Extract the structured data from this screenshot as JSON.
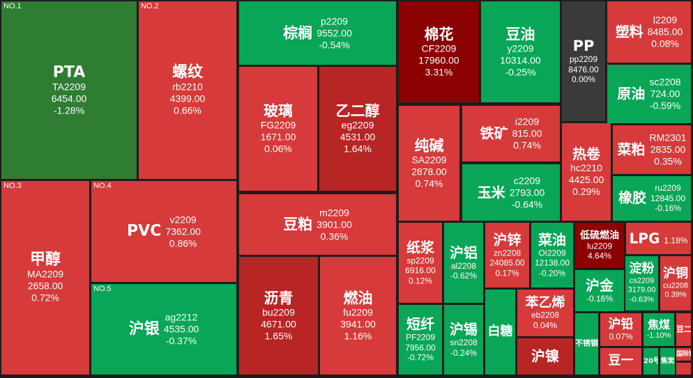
{
  "colors": {
    "bg": "#1d1d1d",
    "red": "#d63a3a",
    "red_deep": "#b82525",
    "red_dark": "#8b0000",
    "green": "#08a656",
    "green_dark": "#2e7d32",
    "neutral": "#3a3a3a"
  },
  "tiles": [
    {
      "rank": "NO.1",
      "name": "PTA",
      "code": "TA2209",
      "price": "6454.00",
      "change": "-1.28%",
      "fill": "#2e7d32",
      "layout": "stack",
      "fs": 22
    },
    {
      "rank": "NO.2",
      "name": "螺纹",
      "code": "rb2210",
      "price": "4399.00",
      "change": "0.66%",
      "fill": "#d63a3a",
      "layout": "stack",
      "fs": 22
    },
    {
      "name": "棕榈",
      "code": "p2209",
      "price": "9552.00",
      "change": "-0.54%",
      "fill": "#08a656",
      "layout": "side",
      "fs": 21
    },
    {
      "name": "棉花",
      "code": "CF2209",
      "price": "17960.00",
      "change": "3.31%",
      "fill": "#8b0000",
      "layout": "stack",
      "fs": 21
    },
    {
      "name": "豆油",
      "code": "y2209",
      "price": "10314.00",
      "change": "-0.25%",
      "fill": "#08a656",
      "layout": "stack",
      "fs": 21
    },
    {
      "name": "PP",
      "code": "pp2209",
      "price": "8476.00",
      "change": "0.00%",
      "fill": "#3a3a3a",
      "layout": "stack",
      "fs": 21
    },
    {
      "name": "塑料",
      "code": "l2209",
      "price": "8485.00",
      "change": "0.08%",
      "fill": "#d63a3a",
      "layout": "side",
      "fs": 20
    },
    {
      "name": "玻璃",
      "code": "FG2209",
      "price": "1671.00",
      "change": "0.06%",
      "fill": "#d63a3a",
      "layout": "stack",
      "fs": 21
    },
    {
      "name": "乙二醇",
      "code": "eg2209",
      "price": "4531.00",
      "change": "1.64%",
      "fill": "#b82525",
      "layout": "stack",
      "fs": 21
    },
    {
      "name": "原油",
      "code": "sc2208",
      "price": "724.00",
      "change": "-0.59%",
      "fill": "#08a656",
      "layout": "side",
      "fs": 20
    },
    {
      "name": "纯碱",
      "code": "SA2209",
      "price": "2878.00",
      "change": "0.74%",
      "fill": "#d63a3a",
      "layout": "stack",
      "fs": 21
    },
    {
      "name": "铁矿",
      "code": "i2209",
      "price": "815.00",
      "change": "0.74%",
      "fill": "#d63a3a",
      "layout": "side",
      "fs": 20
    },
    {
      "name": "热卷",
      "code": "hc2210",
      "price": "4425.00",
      "change": "0.29%",
      "fill": "#d63a3a",
      "layout": "stack",
      "fs": 20
    },
    {
      "name": "菜粕",
      "code": "RM2301",
      "price": "2835.00",
      "change": "0.35%",
      "fill": "#d63a3a",
      "layout": "side",
      "fs": 20
    },
    {
      "rank": "NO.3",
      "name": "甲醇",
      "code": "MA2209",
      "price": "2658.00",
      "change": "0.72%",
      "fill": "#d63a3a",
      "layout": "stack",
      "fs": 22
    },
    {
      "rank": "NO.4",
      "name": "PVC",
      "code": "v2209",
      "price": "7362.00",
      "change": "0.86%",
      "fill": "#d63a3a",
      "layout": "side",
      "fs": 22
    },
    {
      "name": "玉米",
      "code": "c2209",
      "price": "2793.00",
      "change": "-0.64%",
      "fill": "#08a656",
      "layout": "side",
      "fs": 20
    },
    {
      "name": "橡胶",
      "code": "ru2209",
      "price": "12845.00",
      "change": "-0.16%",
      "fill": "#08a656",
      "layout": "side",
      "fs": 20
    },
    {
      "name": "豆粕",
      "code": "m2209",
      "price": "3901.00",
      "change": "0.36%",
      "fill": "#d63a3a",
      "layout": "side",
      "fs": 21
    },
    {
      "name": "纸浆",
      "code": "sp2209",
      "price": "6916.00",
      "change": "0.12%",
      "fill": "#d63a3a",
      "layout": "stack",
      "fs": 20
    },
    {
      "name": "沪铝",
      "code": "al2208",
      "price": "",
      "change": "-0.62%",
      "fill": "#08a656",
      "layout": "stack",
      "fs": 20
    },
    {
      "name": "沪锌",
      "code": "zn2208",
      "price": "24085.00",
      "change": "0.17%",
      "fill": "#d63a3a",
      "layout": "stack",
      "fs": 20
    },
    {
      "name": "菜油",
      "code": "OI2209",
      "price": "12138.00",
      "change": "-0.20%",
      "fill": "#08a656",
      "layout": "stack",
      "fs": 20
    },
    {
      "name": "低硫燃油",
      "code": "lu2209",
      "price": "",
      "change": "4.64%",
      "fill": "#8b0000",
      "layout": "stack",
      "fs": 14
    },
    {
      "name": "LPG",
      "code": "",
      "price": "",
      "change": "1.18%",
      "fill": "#d63a3a",
      "layout": "inline",
      "fs": 20
    },
    {
      "rank": "NO.5",
      "name": "沪银",
      "code": "ag2212",
      "price": "4535.00",
      "change": "-0.37%",
      "fill": "#08a656",
      "layout": "side",
      "fs": 22
    },
    {
      "name": "沥青",
      "code": "bu2209",
      "price": "4671.00",
      "change": "1.65%",
      "fill": "#b82525",
      "layout": "stack",
      "fs": 21
    },
    {
      "name": "燃油",
      "code": "fu2209",
      "price": "3941.00",
      "change": "1.16%",
      "fill": "#d63a3a",
      "layout": "stack",
      "fs": 21
    },
    {
      "name": "短纤",
      "code": "PF2209",
      "price": "7956.00",
      "change": "-0.72%",
      "fill": "#08a656",
      "layout": "stack",
      "fs": 20
    },
    {
      "name": "沪锡",
      "code": "sn2208",
      "price": "",
      "change": "-0.24%",
      "fill": "#08a656",
      "layout": "stack",
      "fs": 20
    },
    {
      "name": "白糖",
      "code": "",
      "price": "",
      "change": "",
      "fill": "#08a656",
      "layout": "stack",
      "fs": 18
    },
    {
      "name": "苯乙烯",
      "code": "eb2208",
      "price": "",
      "change": "0.04%",
      "fill": "#d63a3a",
      "layout": "stack",
      "fs": 19
    },
    {
      "name": "沪金",
      "code": "",
      "price": "",
      "change": "-0.16%",
      "fill": "#08a656",
      "layout": "stack",
      "fs": 20
    },
    {
      "name": "淀粉",
      "code": "cs2209",
      "price": "3179.00",
      "change": "-0.63%",
      "fill": "#08a656",
      "layout": "stack",
      "fs": 18
    },
    {
      "name": "沪铜",
      "code": "cu2208",
      "price": "",
      "change": "0.39%",
      "fill": "#d63a3a",
      "layout": "stack",
      "fs": 18
    },
    {
      "name": "沪镍",
      "code": "",
      "price": "",
      "change": "",
      "fill": "#b82525",
      "layout": "stack",
      "fs": 20
    },
    {
      "name": "不锈钢",
      "code": "",
      "price": "",
      "change": "",
      "fill": "#08a656",
      "layout": "stack",
      "fs": 11
    },
    {
      "name": "沪铅",
      "code": "",
      "price": "",
      "change": "0.07%",
      "fill": "#d63a3a",
      "layout": "stack",
      "fs": 18
    },
    {
      "name": "焦煤",
      "code": "",
      "price": "",
      "change": "-1.10%",
      "fill": "#08a656",
      "layout": "stack",
      "fs": 16
    },
    {
      "name": "豆二",
      "code": "",
      "price": "",
      "change": "",
      "fill": "#d63a3a",
      "layout": "stack",
      "fs": 11
    },
    {
      "name": "豆一",
      "code": "",
      "price": "",
      "change": "",
      "fill": "#d63a3a",
      "layout": "stack",
      "fs": 18
    },
    {
      "name": "20号胶",
      "code": "",
      "price": "",
      "change": "",
      "fill": "#08a656",
      "layout": "stack",
      "fs": 10
    },
    {
      "name": "焦炭",
      "code": "",
      "price": "",
      "change": "",
      "fill": "#08a656",
      "layout": "stack",
      "fs": 10
    },
    {
      "name": "国际铜",
      "code": "",
      "price": "",
      "change": "",
      "fill": "#d63a3a",
      "layout": "stack",
      "fs": 9
    },
    {
      "name": "",
      "code": "",
      "price": "",
      "change": "",
      "fill": "#d63a3a",
      "layout": "stack",
      "fs": 9
    }
  ]
}
